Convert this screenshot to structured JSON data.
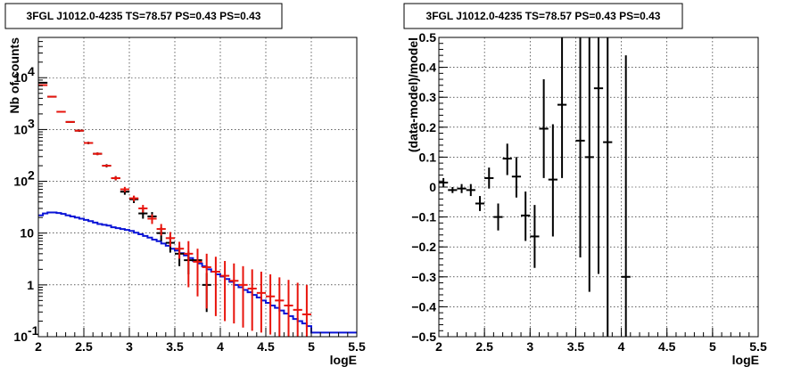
{
  "chart_data": [
    {
      "type": "scatter",
      "title": "3FGL J1012.0-4235 TS=78.57 PS=0.43 PS=0.43",
      "xlabel": "logE",
      "ylabel": "Nb of counts",
      "yscale": "log",
      "xlim": [
        2,
        5.5
      ],
      "ylim": [
        0.1,
        60000
      ],
      "grid": true,
      "xticks": [
        "2",
        "2.5",
        "3",
        "3.5",
        "4",
        "4.5",
        "5",
        "5.5"
      ],
      "yticks": [
        {
          "value": 0.1,
          "label": "10",
          "exp": "-1"
        },
        {
          "value": 1,
          "label": "1",
          "exp": ""
        },
        {
          "value": 10,
          "label": "10",
          "exp": ""
        },
        {
          "value": 100,
          "label": "10",
          "exp": "2"
        },
        {
          "value": 1000,
          "label": "10",
          "exp": "3"
        },
        {
          "value": 10000,
          "label": "10",
          "exp": "4"
        }
      ],
      "series": [
        {
          "color": "#000000",
          "points": [
            {
              "x": 2.05,
              "y": 8000,
              "ylo": 8000,
              "yhi": 8000
            },
            {
              "x": 2.15,
              "y": 4300,
              "ylo": 4300,
              "yhi": 4300
            },
            {
              "x": 2.25,
              "y": 2200,
              "ylo": 2150,
              "yhi": 2250
            },
            {
              "x": 2.35,
              "y": 1400,
              "ylo": 1350,
              "yhi": 1450
            },
            {
              "x": 2.45,
              "y": 950,
              "ylo": 900,
              "yhi": 1000
            },
            {
              "x": 2.55,
              "y": 550,
              "ylo": 520,
              "yhi": 580
            },
            {
              "x": 2.65,
              "y": 340,
              "ylo": 320,
              "yhi": 360
            },
            {
              "x": 2.75,
              "y": 200,
              "ylo": 186,
              "yhi": 214
            },
            {
              "x": 2.85,
              "y": 115,
              "ylo": 104,
              "yhi": 126
            },
            {
              "x": 2.95,
              "y": 63,
              "ylo": 55,
              "yhi": 71
            },
            {
              "x": 3.05,
              "y": 45,
              "ylo": 38,
              "yhi": 52
            },
            {
              "x": 3.15,
              "y": 24,
              "ylo": 19,
              "yhi": 29
            },
            {
              "x": 3.25,
              "y": 21,
              "ylo": 16.5,
              "yhi": 25.5
            },
            {
              "x": 3.35,
              "y": 10,
              "ylo": 7,
              "yhi": 13
            },
            {
              "x": 3.45,
              "y": 6.5,
              "ylo": 4.2,
              "yhi": 8.8
            },
            {
              "x": 3.55,
              "y": 4,
              "ylo": 2.3,
              "yhi": 5.7
            },
            {
              "x": 3.65,
              "y": 3,
              "ylo": 1.6,
              "yhi": 4.4
            },
            {
              "x": 3.75,
              "y": 3,
              "ylo": 1.6,
              "yhi": 4.4
            },
            {
              "x": 3.85,
              "y": 1,
              "ylo": 0.3,
              "yhi": 1.7
            }
          ]
        },
        {
          "color": "#e8140c",
          "points": [
            {
              "x": 2.05,
              "y": 7200,
              "ylo": 7200,
              "yhi": 7200
            },
            {
              "x": 2.15,
              "y": 4300,
              "ylo": 4300,
              "yhi": 4300
            },
            {
              "x": 2.25,
              "y": 2200,
              "ylo": 2200,
              "yhi": 2200
            },
            {
              "x": 2.35,
              "y": 1400,
              "ylo": 1370,
              "yhi": 1430
            },
            {
              "x": 2.45,
              "y": 950,
              "ylo": 920,
              "yhi": 980
            },
            {
              "x": 2.55,
              "y": 550,
              "ylo": 530,
              "yhi": 570
            },
            {
              "x": 2.65,
              "y": 340,
              "ylo": 320,
              "yhi": 360
            },
            {
              "x": 2.75,
              "y": 200,
              "ylo": 190,
              "yhi": 210
            },
            {
              "x": 2.85,
              "y": 115,
              "ylo": 105,
              "yhi": 125
            },
            {
              "x": 2.95,
              "y": 70,
              "ylo": 62,
              "yhi": 78
            },
            {
              "x": 3.05,
              "y": 47,
              "ylo": 41,
              "yhi": 53
            },
            {
              "x": 3.15,
              "y": 30,
              "ylo": 25,
              "yhi": 35
            },
            {
              "x": 3.25,
              "y": 19,
              "ylo": 15,
              "yhi": 23
            },
            {
              "x": 3.35,
              "y": 12,
              "ylo": 9,
              "yhi": 15
            },
            {
              "x": 3.45,
              "y": 8,
              "ylo": 5.5,
              "yhi": 10.5
            },
            {
              "x": 3.55,
              "y": 5,
              "ylo": 3.2,
              "yhi": 6.8
            },
            {
              "x": 3.65,
              "y": 4,
              "ylo": 0.9,
              "yhi": 7
            },
            {
              "x": 3.75,
              "y": 2.8,
              "ylo": 0.6,
              "yhi": 5
            },
            {
              "x": 3.85,
              "y": 2.2,
              "ylo": 0.35,
              "yhi": 4
            },
            {
              "x": 3.95,
              "y": 1.8,
              "ylo": 0.25,
              "yhi": 3.5
            },
            {
              "x": 4.05,
              "y": 1.5,
              "ylo": 0.2,
              "yhi": 2.9
            },
            {
              "x": 4.15,
              "y": 1.2,
              "ylo": 0.18,
              "yhi": 2.6
            },
            {
              "x": 4.25,
              "y": 1.0,
              "ylo": 0.15,
              "yhi": 2.3
            },
            {
              "x": 4.35,
              "y": 0.85,
              "ylo": 0.13,
              "yhi": 2.0
            },
            {
              "x": 4.45,
              "y": 0.7,
              "ylo": 0.12,
              "yhi": 1.8
            },
            {
              "x": 4.55,
              "y": 0.6,
              "ylo": 0.11,
              "yhi": 1.6
            },
            {
              "x": 4.65,
              "y": 0.5,
              "ylo": 0.1,
              "yhi": 1.4
            },
            {
              "x": 4.75,
              "y": 0.4,
              "ylo": 0.1,
              "yhi": 1.25
            },
            {
              "x": 4.85,
              "y": 0.33,
              "ylo": 0.1,
              "yhi": 1.1
            },
            {
              "x": 4.95,
              "y": 0.27,
              "ylo": 0.1,
              "yhi": 1.0
            }
          ]
        }
      ],
      "model": {
        "color": "#0a14d6",
        "x": [
          2.0,
          2.05,
          2.1,
          2.15,
          2.2,
          2.25,
          2.3,
          2.35,
          2.4,
          2.45,
          2.5,
          2.55,
          2.6,
          2.65,
          2.7,
          2.75,
          2.8,
          2.85,
          2.9,
          2.95,
          3.0,
          3.05,
          3.1,
          3.15,
          3.2,
          3.25,
          3.3,
          3.35,
          3.4,
          3.45,
          3.5,
          3.55,
          3.6,
          3.65,
          3.7,
          3.75,
          3.8,
          3.85,
          3.9,
          3.95,
          4.0,
          4.05,
          4.1,
          4.15,
          4.2,
          4.25,
          4.3,
          4.35,
          4.4,
          4.45,
          4.5,
          4.55,
          4.6,
          4.65,
          4.7,
          4.75,
          4.8,
          4.85,
          4.9,
          4.95,
          5.0,
          5.5
        ],
        "y": [
          22,
          24,
          25,
          25,
          24.5,
          23.5,
          22,
          21,
          20,
          19,
          18,
          17,
          16,
          15,
          14.5,
          14,
          13,
          12.5,
          12,
          11.5,
          11,
          10.2,
          9.5,
          8.8,
          8.2,
          7.5,
          7,
          6.3,
          5.7,
          5,
          4.6,
          4.1,
          3.7,
          3.3,
          2.9,
          2.6,
          2.3,
          2.0,
          1.8,
          1.6,
          1.45,
          1.3,
          1.15,
          1.0,
          0.9,
          0.8,
          0.72,
          0.64,
          0.57,
          0.5,
          0.45,
          0.4,
          0.36,
          0.32,
          0.28,
          0.25,
          0.22,
          0.2,
          0.18,
          0.16,
          0.12,
          0.1
        ]
      }
    },
    {
      "type": "scatter",
      "title": "3FGL J1012.0-4235 TS=78.57 PS=0.43 PS=0.43",
      "xlabel": "logE",
      "ylabel": "(data-model)/model",
      "xlim": [
        2,
        5.5
      ],
      "ylim": [
        -0.5,
        0.5
      ],
      "grid": true,
      "xticks": [
        "2",
        "2.5",
        "3",
        "3.5",
        "4",
        "4.5",
        "5",
        "5.5"
      ],
      "yticks": [
        "-0.5",
        "-0.4",
        "-0.3",
        "-0.2",
        "-0.1",
        "0",
        "0.1",
        "0.2",
        "0.3",
        "0.4",
        "0.5"
      ],
      "series": [
        {
          "color": "#000000",
          "points": [
            {
              "x": 2.05,
              "y": 0.015,
              "ylo": 0.0,
              "yhi": 0.03
            },
            {
              "x": 2.15,
              "y": -0.01,
              "ylo": -0.02,
              "yhi": 0.0
            },
            {
              "x": 2.25,
              "y": -0.005,
              "ylo": -0.02,
              "yhi": 0.01
            },
            {
              "x": 2.35,
              "y": -0.01,
              "ylo": -0.03,
              "yhi": 0.01
            },
            {
              "x": 2.45,
              "y": -0.055,
              "ylo": -0.08,
              "yhi": -0.03
            },
            {
              "x": 2.55,
              "y": 0.03,
              "ylo": -0.005,
              "yhi": 0.065
            },
            {
              "x": 2.65,
              "y": -0.1,
              "ylo": -0.145,
              "yhi": -0.055
            },
            {
              "x": 2.75,
              "y": 0.095,
              "ylo": 0.04,
              "yhi": 0.145
            },
            {
              "x": 2.85,
              "y": 0.035,
              "ylo": -0.035,
              "yhi": 0.1
            },
            {
              "x": 2.95,
              "y": -0.095,
              "ylo": -0.18,
              "yhi": -0.015
            },
            {
              "x": 3.05,
              "y": -0.165,
              "ylo": -0.27,
              "yhi": -0.06
            },
            {
              "x": 3.15,
              "y": 0.195,
              "ylo": 0.03,
              "yhi": 0.36
            },
            {
              "x": 3.25,
              "y": 0.025,
              "ylo": -0.165,
              "yhi": 0.21
            },
            {
              "x": 3.35,
              "y": 0.275,
              "ylo": 0.03,
              "yhi": 0.5
            },
            {
              "x": 3.55,
              "y": 0.155,
              "ylo": -0.235,
              "yhi": 0.5
            },
            {
              "x": 3.65,
              "y": 0.1,
              "ylo": -0.35,
              "yhi": 0.5
            },
            {
              "x": 3.75,
              "y": 0.33,
              "ylo": -0.29,
              "yhi": 0.5
            },
            {
              "x": 3.85,
              "y": 0.15,
              "ylo": -0.5,
              "yhi": 0.5
            },
            {
              "x": 4.05,
              "y": -0.3,
              "ylo": -0.5,
              "yhi": 0.44
            }
          ]
        }
      ]
    }
  ]
}
